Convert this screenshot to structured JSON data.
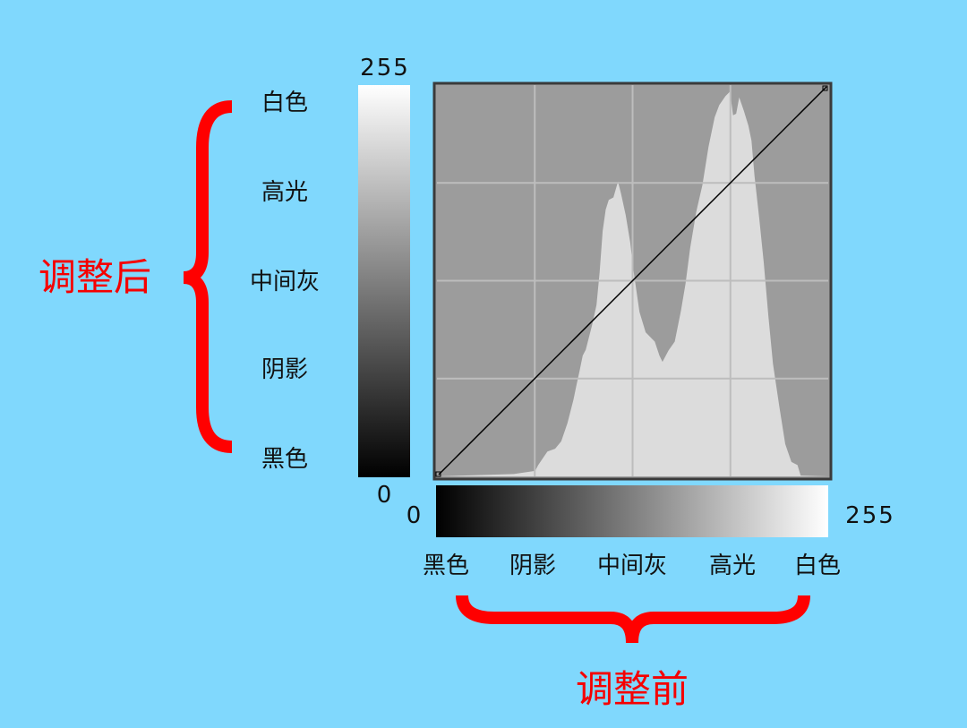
{
  "colors": {
    "background": "#80d8fd",
    "brace": "#ff0000",
    "annotation": "#f50000",
    "plot_bg": "#9c9c9c",
    "histogram": "#dcdcdc",
    "grid": "#bdbdbd"
  },
  "vertical_axis": {
    "annotation": "调整后",
    "max_label": "255",
    "min_label": "0",
    "labels": [
      "白色",
      "高光",
      "中间灰",
      "阴影",
      "黑色"
    ]
  },
  "horizontal_axis": {
    "annotation": "调整前",
    "min_label": "0",
    "max_label": "255",
    "labels": [
      "黑色",
      "阴影",
      "中间灰",
      "高光",
      "白色"
    ]
  },
  "curve": {
    "points": [
      [
        0,
        0
      ],
      [
        255,
        255
      ]
    ]
  },
  "histogram": [
    [
      0,
      0
    ],
    [
      50,
      0.006
    ],
    [
      64,
      0.014
    ],
    [
      66,
      0.029
    ],
    [
      72,
      0.064
    ],
    [
      77,
      0.071
    ],
    [
      81,
      0.09
    ],
    [
      85,
      0.136
    ],
    [
      89,
      0.197
    ],
    [
      91,
      0.235
    ],
    [
      93,
      0.272
    ],
    [
      95,
      0.31
    ],
    [
      97,
      0.325
    ],
    [
      101,
      0.387
    ],
    [
      104,
      0.44
    ],
    [
      106,
      0.524
    ],
    [
      108,
      0.63
    ],
    [
      110,
      0.685
    ],
    [
      112,
      0.71
    ],
    [
      115,
      0.716
    ],
    [
      118,
      0.757
    ],
    [
      120,
      0.726
    ],
    [
      123,
      0.671
    ],
    [
      126,
      0.6
    ],
    [
      128,
      0.53
    ],
    [
      130,
      0.476
    ],
    [
      132,
      0.422
    ],
    [
      136,
      0.37
    ],
    [
      142,
      0.346
    ],
    [
      145,
      0.31
    ],
    [
      147,
      0.294
    ],
    [
      151,
      0.324
    ],
    [
      155,
      0.346
    ],
    [
      159,
      0.425
    ],
    [
      162,
      0.494
    ],
    [
      165,
      0.586
    ],
    [
      169,
      0.679
    ],
    [
      173,
      0.748
    ],
    [
      177,
      0.846
    ],
    [
      181,
      0.922
    ],
    [
      184,
      0.953
    ],
    [
      188,
      0.976
    ],
    [
      191,
      0.988
    ],
    [
      193,
      0.927
    ],
    [
      195,
      0.931
    ],
    [
      197,
      0.973
    ],
    [
      200,
      0.939
    ],
    [
      203,
      0.9
    ],
    [
      205,
      0.862
    ],
    [
      207,
      0.771
    ],
    [
      210,
      0.664
    ],
    [
      213,
      0.549
    ],
    [
      216,
      0.411
    ],
    [
      219,
      0.289
    ],
    [
      223,
      0.182
    ],
    [
      227,
      0.083
    ],
    [
      231,
      0.037
    ],
    [
      235,
      0.029
    ],
    [
      237,
      0.002
    ],
    [
      255,
      0
    ]
  ]
}
